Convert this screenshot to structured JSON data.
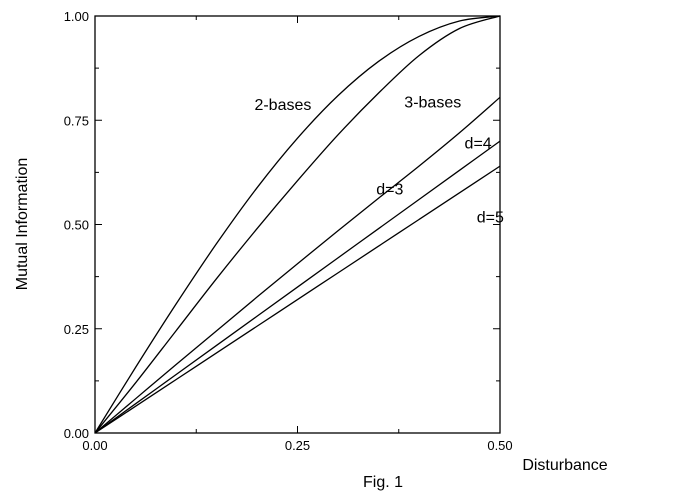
{
  "chart_data": {
    "type": "line",
    "title": "",
    "caption": "Fig. 1",
    "xlabel": "Disturbance",
    "ylabel": "Mutual Information",
    "xlim": [
      0,
      0.5
    ],
    "ylim": [
      0,
      1
    ],
    "grid": false,
    "legend": "none",
    "x_ticks": [
      0,
      0.25,
      0.5
    ],
    "x_tick_labels": [
      "0.00",
      "0.25",
      "0.50"
    ],
    "y_ticks": [
      0,
      0.25,
      0.5,
      0.75,
      1
    ],
    "y_tick_labels": [
      "0.00",
      "0.25",
      "0.50",
      "0.75",
      "1.00"
    ],
    "x": [
      0,
      0.05,
      0.1,
      0.15,
      0.2,
      0.25,
      0.3,
      0.35,
      0.4,
      0.45,
      0.5
    ],
    "series": [
      {
        "name": "2-bases",
        "values": [
          0,
          0.157,
          0.309,
          0.454,
          0.588,
          0.707,
          0.809,
          0.891,
          0.951,
          0.988,
          1.0
        ]
      },
      {
        "name": "3-bases",
        "values": [
          0,
          0.12,
          0.245,
          0.37,
          0.49,
          0.605,
          0.715,
          0.815,
          0.905,
          0.97,
          1.0
        ]
      },
      {
        "name": "d=3",
        "values": [
          0,
          0.082,
          0.164,
          0.245,
          0.326,
          0.406,
          0.485,
          0.563,
          0.64,
          0.72,
          0.805
        ]
      },
      {
        "name": "d=4",
        "values": [
          0,
          0.07,
          0.14,
          0.21,
          0.28,
          0.35,
          0.42,
          0.49,
          0.56,
          0.63,
          0.7
        ]
      },
      {
        "name": "d=5",
        "values": [
          0,
          0.064,
          0.128,
          0.192,
          0.256,
          0.32,
          0.384,
          0.448,
          0.512,
          0.576,
          0.64
        ]
      }
    ]
  }
}
